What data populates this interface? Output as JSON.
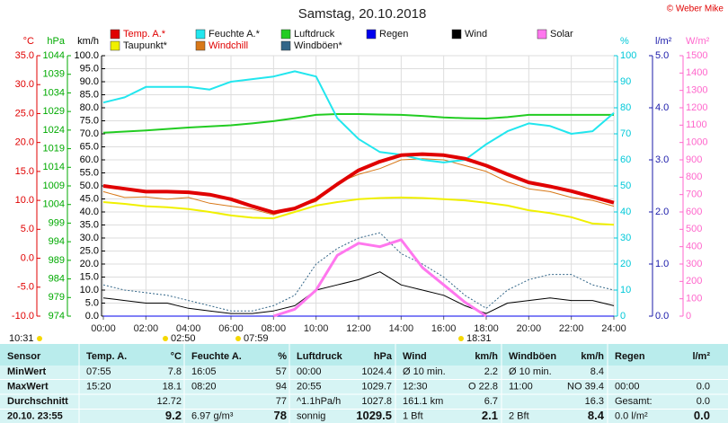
{
  "chart_data": {
    "type": "line",
    "title": "Samstag, 20.10.2018",
    "copyright": "© Weber Mike",
    "xlim": [
      0,
      24
    ],
    "xticks": [
      {
        "value": 0,
        "label": "00:00"
      },
      {
        "value": 2,
        "label": "02:00"
      },
      {
        "value": 4,
        "label": "04:00"
      },
      {
        "value": 6,
        "label": "06:00"
      },
      {
        "value": 8,
        "label": "08:00"
      },
      {
        "value": 10,
        "label": "10:00"
      },
      {
        "value": 12,
        "label": "12:00"
      },
      {
        "value": 14,
        "label": "14:00"
      },
      {
        "value": 16,
        "label": "16:00"
      },
      {
        "value": 18,
        "label": "18:00"
      },
      {
        "value": 20,
        "label": "20:00"
      },
      {
        "value": 22,
        "label": "22:00"
      },
      {
        "value": 24,
        "label": "24:00"
      }
    ],
    "x": [
      0,
      1,
      2,
      3,
      4,
      5,
      6,
      7,
      8,
      9,
      10,
      11,
      12,
      13,
      14,
      15,
      16,
      17,
      18,
      19,
      20,
      21,
      22,
      23,
      24
    ],
    "grid": true,
    "axes": [
      {
        "label": "°C",
        "color": "#e00000",
        "lim": [
          -10,
          35
        ],
        "ticks": [
          {
            "value": -10,
            "label": "-10.0"
          },
          {
            "value": -5,
            "label": "-5.0"
          },
          {
            "value": 0,
            "label": "0.0"
          },
          {
            "value": 5,
            "label": "5.0"
          },
          {
            "value": 10,
            "label": "10.0"
          },
          {
            "value": 15,
            "label": "15.0"
          },
          {
            "value": 20,
            "label": "20.0"
          },
          {
            "value": 25,
            "label": "25.0"
          },
          {
            "value": 30,
            "label": "30.0"
          },
          {
            "value": 35,
            "label": "35.0"
          }
        ]
      },
      {
        "label": "hPa",
        "color": "#00aa00",
        "lim": [
          974,
          1044
        ],
        "ticks": [
          974,
          979,
          984,
          989,
          994,
          999,
          1004,
          1009,
          1014,
          1019,
          1024,
          1029,
          1034,
          1039,
          1044
        ]
      },
      {
        "label": "km/h",
        "color": "#000000",
        "lim": [
          0,
          100
        ],
        "ticks": [
          {
            "value": 0,
            "label": "0.0"
          },
          {
            "value": 5,
            "label": "5.0"
          },
          {
            "value": 10,
            "label": "10.0"
          },
          {
            "value": 15,
            "label": "15.0"
          },
          {
            "value": 20,
            "label": "20.0"
          },
          {
            "value": 25,
            "label": "25.0"
          },
          {
            "value": 30,
            "label": "30.0"
          },
          {
            "value": 35,
            "label": "35.0"
          },
          {
            "value": 40,
            "label": "40.0"
          },
          {
            "value": 45,
            "label": "45.0"
          },
          {
            "value": 50,
            "label": "50.0"
          },
          {
            "value": 55,
            "label": "55.0"
          },
          {
            "value": 60,
            "label": "60.0"
          },
          {
            "value": 65,
            "label": "65.0"
          },
          {
            "value": 70,
            "label": "70.0"
          },
          {
            "value": 75,
            "label": "75.0"
          },
          {
            "value": 80,
            "label": "80.0"
          },
          {
            "value": 85,
            "label": "85.0"
          },
          {
            "value": 90,
            "label": "90.0"
          },
          {
            "value": 95,
            "label": "95.0"
          },
          {
            "value": 100,
            "label": "100.0"
          }
        ]
      },
      {
        "label": "%",
        "color": "#00c8d8",
        "lim": [
          0,
          100
        ],
        "ticks": [
          0,
          10,
          20,
          30,
          40,
          50,
          60,
          70,
          80,
          90,
          100
        ]
      },
      {
        "label": "l/m²",
        "color": "#1a1aaa",
        "lim": [
          0,
          5
        ],
        "ticks": [
          {
            "value": 0,
            "label": "0.0"
          },
          {
            "value": 1,
            "label": "1.0"
          },
          {
            "value": 2,
            "label": "2.0"
          },
          {
            "value": 3,
            "label": "3.0"
          },
          {
            "value": 4,
            "label": "4.0"
          },
          {
            "value": 5,
            "label": "5.0"
          }
        ]
      },
      {
        "label": "W/m²",
        "color": "#ff66cc",
        "lim": [
          0,
          1500
        ],
        "ticks": [
          0,
          100,
          200,
          300,
          400,
          500,
          600,
          700,
          800,
          900,
          1000,
          1100,
          1200,
          1300,
          1400,
          1500
        ]
      }
    ],
    "series": [
      {
        "name": "Temp. A.*",
        "color": "#e00000",
        "axis": 0,
        "width": 4,
        "values": [
          12.5,
          12.0,
          11.5,
          11.5,
          11.4,
          11.0,
          10.2,
          9.0,
          7.9,
          8.6,
          10.2,
          12.8,
          15.2,
          16.7,
          17.8,
          18.0,
          17.8,
          17.2,
          16.0,
          14.5,
          13.1,
          12.4,
          11.6,
          10.6,
          9.6
        ]
      },
      {
        "name": "Feuchte A.*",
        "color": "#22e6ee",
        "axis": 3,
        "width": 2,
        "values": [
          82,
          84,
          88,
          88,
          88,
          87,
          90,
          91,
          92,
          94,
          92,
          76,
          68,
          63,
          62,
          60,
          59,
          60,
          66,
          71,
          74,
          73,
          70,
          71,
          78
        ]
      },
      {
        "name": "Luftdruck",
        "color": "#22cc22",
        "axis": 1,
        "width": 2,
        "values": [
          1023.3,
          1023.6,
          1023.9,
          1024.3,
          1024.7,
          1025.0,
          1025.3,
          1025.8,
          1026.4,
          1027.2,
          1028.1,
          1028.3,
          1028.3,
          1028.2,
          1028.1,
          1027.8,
          1027.4,
          1027.2,
          1027.1,
          1027.5,
          1028.1,
          1028.1,
          1028.1,
          1028.1,
          1028.1
        ]
      },
      {
        "name": "Regen",
        "color": "#0000ee",
        "axis": 4,
        "width": 1,
        "values": [
          0,
          0,
          0,
          0,
          0,
          0,
          0,
          0,
          0,
          0,
          0,
          0,
          0,
          0,
          0,
          0,
          0,
          0,
          0,
          0,
          0,
          0,
          0,
          0,
          0
        ]
      },
      {
        "name": "Wind",
        "color": "#000000",
        "axis": 2,
        "width": 1,
        "values": [
          7,
          6,
          5,
          5,
          3,
          2,
          1,
          1,
          2,
          4,
          10,
          12,
          14,
          17,
          12,
          10,
          8,
          4,
          1,
          5,
          6,
          7,
          6,
          6,
          4
        ]
      },
      {
        "name": "Solar",
        "color": "#ff77ee",
        "axis": 5,
        "width": 3,
        "values": [
          null,
          null,
          null,
          null,
          null,
          null,
          null,
          null,
          0,
          40,
          150,
          350,
          420,
          400,
          440,
          280,
          180,
          80,
          0,
          null,
          null,
          null,
          null,
          null,
          null
        ]
      },
      {
        "name": "Taupunkt*",
        "color": "#f0f000",
        "axis": 0,
        "width": 2,
        "values": [
          9.7,
          9.4,
          9.0,
          8.8,
          8.5,
          8.0,
          7.4,
          7.0,
          6.9,
          8.0,
          9.1,
          9.7,
          10.2,
          10.4,
          10.5,
          10.4,
          10.2,
          10.0,
          9.6,
          9.1,
          8.3,
          7.8,
          7.1,
          6.0,
          5.8
        ]
      },
      {
        "name": "Windchill",
        "color": "#d87818",
        "axis": 0,
        "width": 1,
        "values": [
          11.5,
          10.5,
          10.6,
          10.2,
          10.5,
          9.5,
          9.0,
          8.5,
          7.5,
          8.7,
          9.8,
          13.0,
          14.5,
          15.5,
          17.0,
          17.2,
          17.0,
          16.0,
          15.0,
          13.2,
          12.0,
          11.5,
          10.5,
          10.0,
          9.0
        ]
      },
      {
        "name": "Windböen*",
        "color": "#336688",
        "axis": 2,
        "width": 1,
        "dashed": true,
        "values": [
          12,
          10,
          9,
          8,
          6,
          4,
          2,
          2,
          4,
          8,
          20,
          26,
          30,
          32,
          24,
          20,
          15,
          8,
          3,
          10,
          14,
          16,
          16,
          12,
          10
        ]
      }
    ],
    "markers": [
      "10:31",
      "02:50",
      "07:59",
      "18:31"
    ]
  },
  "table": {
    "headers": [
      [
        "Sensor",
        null
      ],
      [
        "Temp. A.",
        "°C"
      ],
      [
        "Feuchte A.",
        "%"
      ],
      [
        "Luftdruck",
        "hPa"
      ],
      [
        "Wind",
        "km/h"
      ],
      [
        "Windböen",
        "km/h"
      ],
      [
        "Regen",
        "l/m²"
      ]
    ],
    "rows": [
      [
        "MinWert",
        "07:55",
        "7.8",
        "16:05",
        "57",
        "00:00",
        "1024.4",
        "Ø 10 min.",
        "2.2",
        "Ø 10 min.",
        "8.4",
        null,
        null
      ],
      [
        "MaxWert",
        "15:20",
        "18.1",
        "08:20",
        "94",
        "20:55",
        "1029.7",
        "12:30",
        "O 22.8",
        "11:00",
        "NO 39.4",
        "00:00",
        "0.0"
      ],
      [
        "Durchschnitt",
        null,
        "12.72",
        null,
        "77",
        "^1.1hPa/h",
        "1027.8",
        "161.1 km",
        "6.7",
        null,
        "16.3",
        "Gesamt:",
        "0.0"
      ],
      [
        "20.10. 23:55",
        null,
        "9.2",
        "6.97 g/m³",
        "78",
        "sonnig",
        "1029.5",
        "1 Bft",
        "2.1",
        "2 Bft",
        "8.4",
        "0.0 l/m²",
        "0.0"
      ]
    ]
  }
}
